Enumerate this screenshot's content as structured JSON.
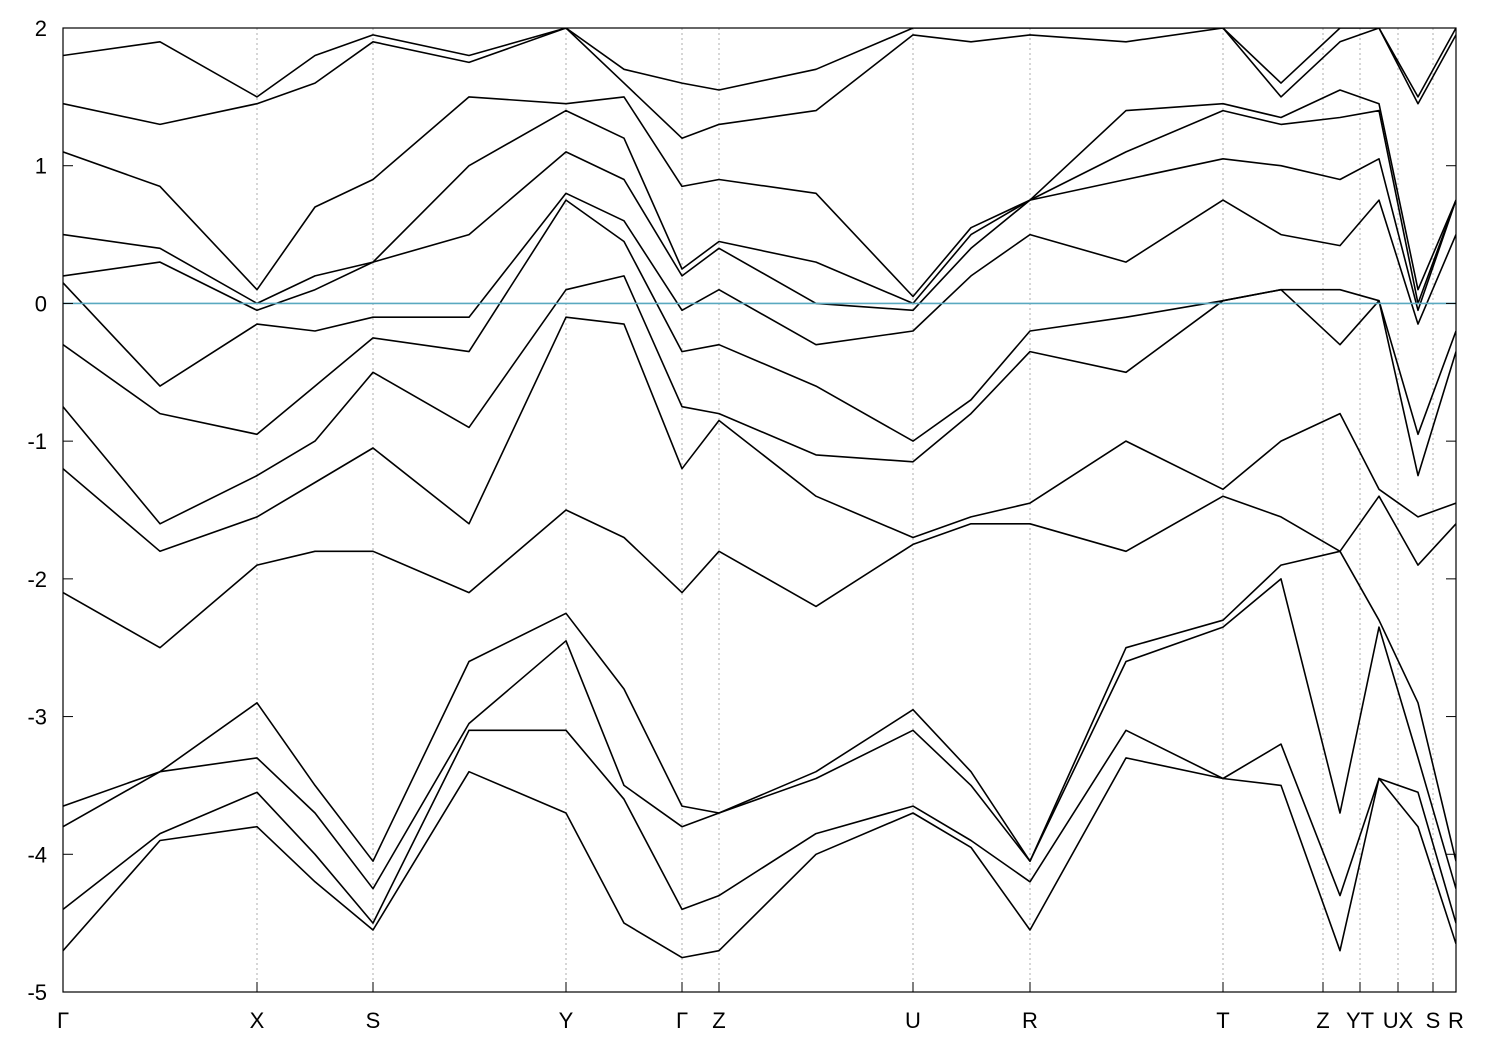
{
  "chart_data": {
    "type": "line",
    "x": [
      0,
      97,
      194,
      252,
      310,
      406,
      503,
      561,
      619,
      656,
      753,
      850,
      908,
      967,
      1063,
      1160,
      1218,
      1277,
      1316,
      1355,
      1393
    ],
    "xlim": [
      0,
      1393
    ],
    "xticks": [
      {
        "value": 0,
        "label": "Γ"
      },
      {
        "value": 194,
        "label": "X"
      },
      {
        "value": 310,
        "label": "S"
      },
      {
        "value": 503,
        "label": "Y"
      },
      {
        "value": 619,
        "label": "Γ"
      },
      {
        "value": 656,
        "label": "Z"
      },
      {
        "value": 850,
        "label": "U"
      },
      {
        "value": 967,
        "label": "R"
      },
      {
        "value": 1160,
        "label": "T"
      },
      {
        "value": 1260,
        "label": "Z"
      },
      {
        "value": 1297,
        "label": "YT"
      },
      {
        "value": 1335,
        "label": "UX"
      },
      {
        "value": 1370,
        "label": "S"
      },
      {
        "value": 1393,
        "label": "R"
      }
    ],
    "ylim": [
      -5,
      2
    ],
    "yticks": [
      -5,
      -4,
      -3,
      -2,
      -1,
      0,
      1,
      2
    ],
    "grid": "x",
    "color": "#000000",
    "fermi_level": 0,
    "fermi_color": "#5aa9c0",
    "series": [
      {
        "values": [
          -4.7,
          -3.9,
          -3.8,
          -4.2,
          -4.55,
          -3.4,
          -3.7,
          -4.5,
          -4.75,
          -4.7,
          -4.0,
          -3.7,
          -3.95,
          -4.55,
          -3.3,
          -3.45,
          -3.5,
          -4.7,
          -3.45,
          -3.8,
          -4.65
        ]
      },
      {
        "values": [
          -4.4,
          -3.85,
          -3.55,
          -4.0,
          -4.5,
          -3.1,
          -3.1,
          -3.6,
          -4.4,
          -4.3,
          -3.85,
          -3.65,
          -3.9,
          -4.2,
          -3.1,
          -3.45,
          -3.2,
          -4.3,
          -3.45,
          -3.55,
          -4.5
        ]
      },
      {
        "values": [
          -3.8,
          -3.4,
          -3.3,
          -3.7,
          -4.25,
          -3.05,
          -2.45,
          -3.5,
          -3.8,
          -3.7,
          -3.45,
          -3.1,
          -3.5,
          -4.05,
          -2.6,
          -2.35,
          -2.0,
          -3.7,
          -2.35,
          -3.3,
          -4.25
        ]
      },
      {
        "values": [
          -3.65,
          -3.4,
          -2.9,
          -3.5,
          -4.05,
          -2.6,
          -2.25,
          -2.8,
          -3.65,
          -3.7,
          -3.4,
          -2.95,
          -3.4,
          -4.05,
          -2.5,
          -2.3,
          -1.9,
          -1.8,
          -2.3,
          -2.9,
          -4.05
        ]
      },
      {
        "values": [
          -2.1,
          -2.5,
          -1.9,
          -1.8,
          -1.8,
          -2.1,
          -1.5,
          -1.7,
          -2.1,
          -1.8,
          -2.2,
          -1.75,
          -1.6,
          -1.6,
          -1.8,
          -1.4,
          -1.55,
          -1.8,
          -1.4,
          -1.9,
          -1.6
        ]
      },
      {
        "values": [
          -1.2,
          -1.8,
          -1.55,
          -1.3,
          -1.05,
          -1.6,
          -0.1,
          -0.15,
          -1.2,
          -0.85,
          -1.4,
          -1.7,
          -1.55,
          -1.45,
          -1.0,
          -1.35,
          -1.0,
          -0.8,
          -1.35,
          -1.55,
          -1.45
        ]
      },
      {
        "values": [
          -0.75,
          -1.6,
          -1.25,
          -1.0,
          -0.5,
          -0.9,
          0.1,
          0.2,
          -0.75,
          -0.8,
          -1.1,
          -1.15,
          -0.8,
          -0.35,
          -0.5,
          0.02,
          0.1,
          -0.3,
          0.02,
          -1.25,
          -0.35
        ]
      },
      {
        "values": [
          -0.3,
          -0.8,
          -0.95,
          -0.6,
          -0.25,
          -0.35,
          0.75,
          0.45,
          -0.35,
          -0.3,
          -0.6,
          -1.0,
          -0.7,
          -0.2,
          -0.1,
          0.02,
          0.1,
          0.1,
          0.02,
          -0.95,
          -0.2
        ]
      },
      {
        "values": [
          0.15,
          -0.6,
          -0.15,
          -0.2,
          -0.1,
          -0.1,
          0.8,
          0.6,
          -0.05,
          0.1,
          -0.3,
          -0.2,
          0.2,
          0.5,
          0.3,
          0.75,
          0.5,
          0.42,
          0.75,
          -0.15,
          0.5
        ]
      },
      {
        "values": [
          0.2,
          0.3,
          -0.05,
          0.1,
          0.3,
          0.5,
          1.1,
          0.9,
          0.2,
          0.4,
          0.0,
          -0.05,
          0.4,
          0.75,
          0.9,
          1.05,
          1.0,
          0.9,
          1.05,
          -0.05,
          0.75
        ]
      },
      {
        "values": [
          0.5,
          0.4,
          0.0,
          0.2,
          0.3,
          1.0,
          1.4,
          1.2,
          0.25,
          0.45,
          0.3,
          0.0,
          0.5,
          0.75,
          1.1,
          1.4,
          1.3,
          1.35,
          1.4,
          0.0,
          0.75
        ]
      },
      {
        "values": [
          1.1,
          0.85,
          0.1,
          0.7,
          0.9,
          1.5,
          1.45,
          1.5,
          0.85,
          0.9,
          0.8,
          0.05,
          0.55,
          0.75,
          1.4,
          1.45,
          1.35,
          1.55,
          1.45,
          0.1,
          0.75
        ]
      },
      {
        "values": [
          1.45,
          1.3,
          1.45,
          1.6,
          1.9,
          1.75,
          2.0,
          1.6,
          1.2,
          1.3,
          1.4,
          1.95,
          1.9,
          1.95,
          1.9,
          2.0,
          1.5,
          1.9,
          2.0,
          1.45,
          1.95
        ]
      },
      {
        "values": [
          1.8,
          1.9,
          1.5,
          1.8,
          1.95,
          1.8,
          2.0,
          1.7,
          1.6,
          1.55,
          1.7,
          2.0,
          2.0,
          2.0,
          2.0,
          2.0,
          1.6,
          2.0,
          2.0,
          1.5,
          2.0
        ]
      }
    ]
  }
}
